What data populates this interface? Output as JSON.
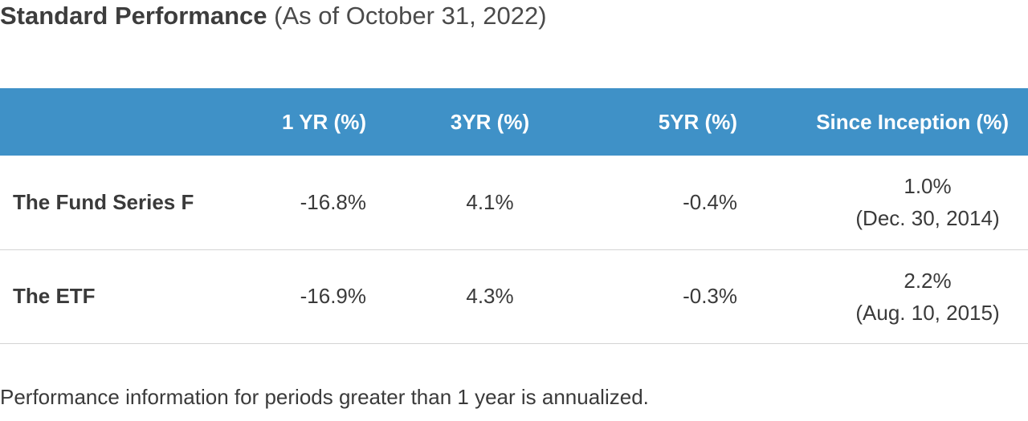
{
  "title": {
    "bold_text": "Standard Performance",
    "light_text": "(As of October 31, 2022)"
  },
  "table": {
    "headers": [
      "",
      "1 YR (%)",
      "3YR (%)",
      "5YR (%)",
      "Since Inception (%)"
    ],
    "rows": [
      {
        "name": "The Fund Series F",
        "one_yr": "-16.8%",
        "three_yr": "4.1%",
        "five_yr": "-0.4%",
        "since_inception": "1.0%",
        "inception_date": "(Dec. 30, 2014)"
      },
      {
        "name": "The ETF",
        "one_yr": "-16.9%",
        "three_yr": "4.3%",
        "five_yr": "-0.3%",
        "since_inception": "2.2%",
        "inception_date": "(Aug. 10, 2015)"
      }
    ]
  },
  "footnote": "Performance information for periods greater than 1 year is annualized.",
  "colors": {
    "header_background": "#3f91c7",
    "header_text": "#ffffff",
    "row_divider": "#d4d4d4",
    "body_text": "#3a3a3a"
  }
}
